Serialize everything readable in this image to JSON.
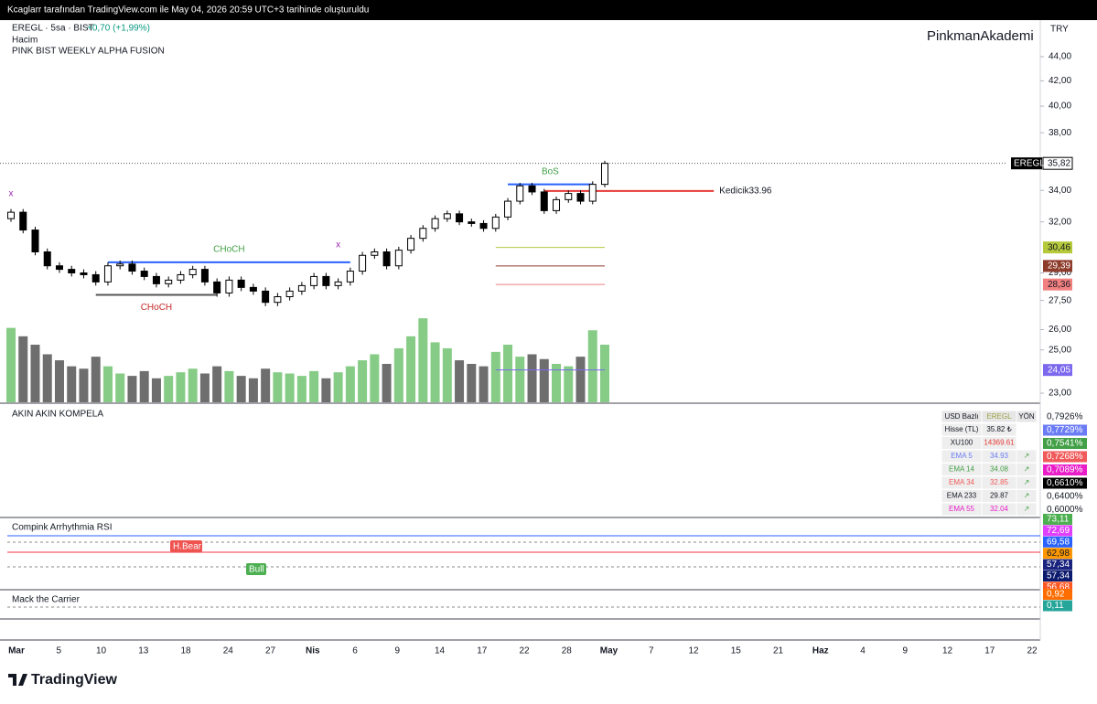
{
  "header": {
    "credit": "Kcaglarr tarafından TradingView.com ile May 04, 2026 20:59 UTC+3 tarihinde oluşturuldu",
    "symbol": "EREGL · 5sa · BIST",
    "change": "+0,70 (+1,99%)",
    "indicators": [
      "Hacim",
      "PINK BIST WEEKLY ALPHA FUSION"
    ],
    "watermark": "PinkmanAkademi",
    "currency": "TRY"
  },
  "chart_data": {
    "type": "candlestick",
    "log_scale": true,
    "ylim": [
      23,
      44
    ],
    "yticks": [
      {
        "value": 44,
        "label": "44,00"
      },
      {
        "value": 42,
        "label": "42,00"
      },
      {
        "value": 40,
        "label": "40,00"
      },
      {
        "value": 38,
        "label": "38,00"
      },
      {
        "value": 34,
        "label": "34,00"
      },
      {
        "value": 32,
        "label": "32,00"
      },
      {
        "value": 29,
        "label": "29,00"
      },
      {
        "value": 27.5,
        "label": "27,50"
      },
      {
        "value": 26,
        "label": "26,00"
      },
      {
        "value": 25,
        "label": "25,00"
      },
      {
        "value": 23,
        "label": "23,00"
      }
    ],
    "x_labels": [
      "Mar",
      "5",
      "10",
      "13",
      "18",
      "24",
      "27",
      "Nis",
      "6",
      "9",
      "14",
      "17",
      "22",
      "28",
      "May",
      "7",
      "12",
      "15",
      "21",
      "Haz",
      "4",
      "9",
      "12",
      "17",
      "22"
    ],
    "open": [
      32.2,
      32.6,
      31.5,
      30.2,
      29.4,
      29.2,
      29.0,
      28.9,
      28.5,
      29.4,
      29.5,
      29.1,
      28.8,
      28.4,
      28.6,
      28.9,
      29.2,
      28.5,
      27.9,
      28.6,
      28.2,
      28.0,
      27.4,
      27.7,
      28.0,
      28.3,
      28.8,
      28.3,
      28.5,
      29.1,
      30.0,
      30.2,
      29.4,
      30.3,
      31.0,
      31.6,
      32.2,
      32.5,
      32.0,
      31.9,
      31.6,
      32.3,
      33.3,
      34.3,
      33.9,
      32.7,
      33.4,
      33.8,
      33.3,
      34.4
    ],
    "high": [
      32.8,
      32.8,
      31.7,
      30.4,
      29.6,
      29.4,
      29.2,
      29.1,
      29.6,
      29.7,
      29.7,
      29.3,
      29.0,
      28.8,
      29.1,
      29.4,
      29.4,
      28.7,
      28.8,
      28.8,
      28.4,
      28.2,
      27.9,
      28.2,
      28.5,
      29.0,
      29.0,
      28.7,
      29.3,
      30.2,
      30.4,
      30.4,
      30.5,
      31.2,
      31.8,
      32.4,
      32.7,
      32.7,
      32.2,
      32.1,
      32.5,
      33.5,
      34.5,
      34.5,
      34.1,
      33.6,
      34.0,
      34.0,
      34.6,
      36.0
    ],
    "low": [
      32.0,
      31.3,
      30.0,
      29.2,
      29.0,
      28.8,
      28.7,
      28.3,
      28.3,
      29.2,
      28.9,
      28.6,
      28.2,
      28.2,
      28.4,
      28.7,
      28.3,
      27.7,
      27.7,
      28.0,
      27.8,
      27.2,
      27.2,
      27.5,
      27.8,
      28.1,
      28.1,
      28.1,
      28.3,
      28.9,
      29.8,
      29.2,
      29.2,
      30.1,
      30.8,
      31.4,
      32.0,
      31.8,
      31.7,
      31.4,
      31.4,
      32.1,
      33.1,
      33.7,
      32.5,
      32.5,
      33.2,
      33.1,
      33.1,
      34.2
    ],
    "close": [
      32.6,
      31.5,
      30.2,
      29.4,
      29.2,
      29.0,
      28.9,
      28.5,
      29.4,
      29.5,
      29.1,
      28.8,
      28.4,
      28.6,
      28.9,
      29.2,
      28.5,
      27.9,
      28.6,
      28.2,
      28.0,
      27.4,
      27.7,
      28.0,
      28.3,
      28.8,
      28.3,
      28.5,
      29.1,
      30.0,
      30.2,
      29.4,
      30.3,
      31.0,
      31.6,
      32.2,
      32.5,
      32.0,
      31.9,
      31.6,
      32.3,
      33.3,
      34.3,
      33.9,
      32.7,
      33.4,
      33.8,
      33.3,
      34.4,
      35.82
    ],
    "volume": [
      62,
      55,
      48,
      40,
      35,
      30,
      28,
      38,
      30,
      24,
      22,
      26,
      20,
      22,
      25,
      28,
      24,
      30,
      26,
      22,
      20,
      28,
      25,
      24,
      22,
      26,
      20,
      25,
      30,
      35,
      40,
      32,
      45,
      55,
      70,
      50,
      45,
      35,
      32,
      30,
      42,
      48,
      38,
      40,
      36,
      32,
      30,
      38,
      60,
      48
    ],
    "volume_ylim": [
      0,
      80
    ],
    "up_color": "#ffffff",
    "down_color": "#000000",
    "volume_up_color": "#86cc86",
    "volume_down_color": "#6e6e6e",
    "last_price_tag": "EREGL",
    "price_labels": [
      {
        "value": 35.82,
        "label": "35,82",
        "color": "#ffffff"
      },
      {
        "value": 30.46,
        "label": "30,46",
        "color": "#b5c93b"
      },
      {
        "value": 29.39,
        "label": "29,39",
        "color": "#8d3b2b"
      },
      {
        "value": 28.36,
        "label": "28,36",
        "color": "#f28080"
      },
      {
        "value": 24.05,
        "label": "24,05",
        "color": "#7b68ee"
      }
    ],
    "levels": [
      {
        "label": "BoS",
        "value": 34.4,
        "x": [
          41,
          48
        ],
        "color": "#2962ff",
        "text_color": "#43a047",
        "label_side": "above"
      },
      {
        "label": "Kedicik33.96",
        "value": 33.96,
        "x": [
          44,
          58
        ],
        "color": "#e53935",
        "text_color": "#131722",
        "label_side": "right"
      },
      {
        "label": "CHoCH",
        "value": 29.6,
        "x": [
          8,
          28
        ],
        "color": "#2962ff",
        "text_color": "#43a047",
        "label_side": "above"
      },
      {
        "label": "CHoCH",
        "value": 27.8,
        "x": [
          7,
          17
        ],
        "color": "#555555",
        "text_color": "#c62828",
        "label_side": "below"
      }
    ],
    "markers": [
      {
        "label": "x",
        "x": 0,
        "value": 33.8,
        "color": "#9c27b0"
      },
      {
        "label": "x",
        "x": 27,
        "value": 30.6,
        "color": "#9c27b0"
      }
    ]
  },
  "panels": {
    "kompela": {
      "title": "AKIN AKIN KOMPELA",
      "table": {
        "header": [
          "USD Bazlı",
          "EREGL",
          "YÖN"
        ],
        "rows": [
          {
            "cells": [
              "Hisse (TL)",
              "35.82 ₺"
            ],
            "color": "#131722"
          },
          {
            "cells": [
              "XU100",
              "14369.61"
            ],
            "color": "#131722"
          },
          {
            "cells": [
              "EMA 5",
              "34.93",
              "↗"
            ],
            "color": "#6b7cf5"
          },
          {
            "cells": [
              "EMA 14",
              "34.08",
              "↗"
            ],
            "color": "#43a047"
          },
          {
            "cells": [
              "EMA 34",
              "32.85",
              "↗"
            ],
            "color": "#f15a5a"
          },
          {
            "cells": [
              "EMA 233",
              "29.87",
              "↗"
            ],
            "color": "#131722"
          },
          {
            "cells": [
              "EMA 55",
              "32.04",
              "↗"
            ],
            "color": "#e91ec9"
          }
        ]
      },
      "labels": [
        {
          "label": "0,7926%",
          "color": "#ffffff"
        },
        {
          "label": "0,7729%",
          "color": "#6b7cf5"
        },
        {
          "label": "0,7541%",
          "color": "#43a047"
        },
        {
          "label": "0,7268%",
          "color": "#f15a5a"
        },
        {
          "label": "0,7089%",
          "color": "#e91ec9"
        },
        {
          "label": "0,6610%",
          "color": "#000000"
        },
        {
          "label": "0,6400%",
          "color": "#ffffff"
        },
        {
          "label": "0,6000%",
          "color": "#ffffff"
        }
      ]
    },
    "rsi": {
      "title": "Compink Arrhythmia RSI",
      "annotations": [
        "H.Bear",
        "Bull"
      ],
      "labels": [
        {
          "label": "73,11",
          "color": "#4caf50"
        },
        {
          "label": "72,69",
          "color": "#e040fb"
        },
        {
          "label": "69,58",
          "color": "#2962ff"
        },
        {
          "label": "62,98",
          "color": "#ff9800"
        },
        {
          "label": "57,34",
          "color": "#1a237e"
        },
        {
          "label": "57,34",
          "color": "#0d1b6e"
        },
        {
          "label": "56,68",
          "color": "#ff5722"
        }
      ]
    },
    "carrier": {
      "title": "Mack the Carrier",
      "labels": [
        {
          "label": "0,92",
          "color": "#ff6d00"
        },
        {
          "label": "0,11",
          "color": "#26a69a"
        }
      ]
    }
  },
  "footer": {
    "brand": "TradingView"
  }
}
